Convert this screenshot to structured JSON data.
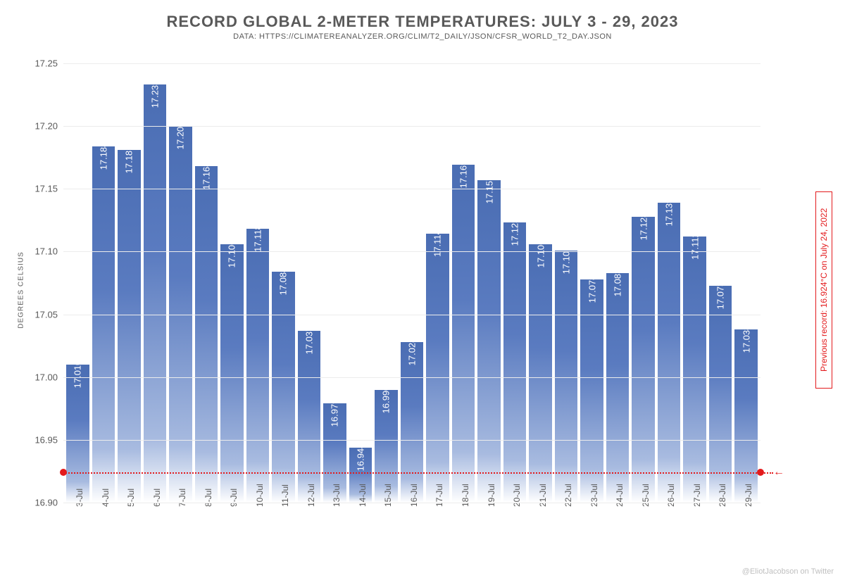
{
  "title": "RECORD GLOBAL 2-METER TEMPERATURES: JULY 3 - 29, 2023",
  "subtitle": "DATA: HTTPS://CLIMATEREANALYZER.ORG/CLIM/T2_DAILY/JSON/CFSR_WORLD_T2_DAY.JSON",
  "ylabel": "DEGREES CELSIUS",
  "attribution": "@EliotJacobson on Twitter",
  "chart": {
    "type": "bar",
    "ylim": [
      16.9,
      17.25
    ],
    "yticks": [
      16.9,
      16.95,
      17.0,
      17.05,
      17.1,
      17.15,
      17.2,
      17.25
    ],
    "ytick_labels": [
      "16.90",
      "16.95",
      "17.00",
      "17.05",
      "17.10",
      "17.15",
      "17.20",
      "17.25"
    ],
    "grid_color": "#ececec",
    "bar_gradient_top": "#4a6db3",
    "bar_gradient_bottom": "#ffffff",
    "value_label_color": "#ffffff",
    "value_label_fontsize": 13,
    "categories": [
      "3-Jul",
      "4-Jul",
      "5-Jul",
      "6-Jul",
      "7-Jul",
      "8-Jul",
      "9-Jul",
      "10-Jul",
      "11-Jul",
      "12-Jul",
      "13-Jul",
      "14-Jul",
      "15-Jul",
      "16-Jul",
      "17-Jul",
      "18-Jul",
      "19-Jul",
      "20-Jul",
      "21-Jul",
      "22-Jul",
      "23-Jul",
      "24-Jul",
      "25-Jul",
      "26-Jul",
      "27-Jul",
      "28-Jul",
      "29-Jul"
    ],
    "values": [
      17.01,
      17.184,
      17.181,
      17.233,
      17.2,
      17.168,
      17.106,
      17.118,
      17.084,
      17.037,
      16.979,
      16.944,
      16.99,
      17.028,
      17.114,
      17.169,
      17.157,
      17.123,
      17.106,
      17.101,
      17.078,
      17.083,
      17.128,
      17.139,
      17.112,
      17.073,
      17.038
    ],
    "value_labels": [
      "17.010",
      "17.184",
      "17.181",
      "17.233",
      "17.200",
      "17.168",
      "17.106",
      "17.118",
      "17.084",
      "17.037",
      "16.979",
      "16.944",
      "16.990",
      "17.028",
      "17.114",
      "17.169",
      "17.157",
      "17.123",
      "17.106",
      "17.101",
      "17.078",
      "17.083",
      "17.128",
      "17.139",
      "17.112",
      "17.073",
      "17.038"
    ],
    "reference": {
      "value": 16.924,
      "label": "Previous record: 16.924°C on July 24, 2022",
      "color": "#e31a1c"
    }
  }
}
